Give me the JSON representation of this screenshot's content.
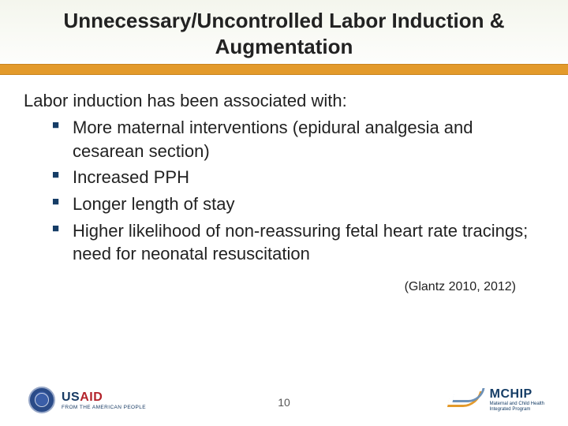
{
  "colors": {
    "accent_bar": "#e39a2b",
    "bullet_marker": "#153d66",
    "title_text": "#222222",
    "body_text": "#222222",
    "background_top": "#f4f6ed",
    "background_bottom": "#ffffff",
    "usaid_navy": "#173a63",
    "usaid_red": "#b3232b",
    "mchip_blue": "#6d91b8"
  },
  "typography": {
    "title_fontsize_pt": 20,
    "body_fontsize_pt": 17,
    "citation_fontsize_pt": 12,
    "font_family": "Verdana"
  },
  "title": "Unnecessary/Uncontrolled Labor Induction & Augmentation",
  "lead": "Labor induction has been associated with:",
  "bullets": [
    "More maternal interventions (epidural analgesia and cesarean section)",
    "Increased PPH",
    "Longer length of stay",
    "Higher likelihood of non-reassuring fetal heart rate tracings; need for neonatal resuscitation"
  ],
  "citation": "(Glantz 2010, 2012)",
  "page_number": "10",
  "logos": {
    "left": {
      "name": "USAID",
      "prefix": "US",
      "suffix": "AID",
      "tagline": "FROM THE AMERICAN PEOPLE"
    },
    "right": {
      "name": "MCHIP",
      "tagline_line1": "Maternal and Child Health",
      "tagline_line2": "Integrated Program"
    }
  }
}
